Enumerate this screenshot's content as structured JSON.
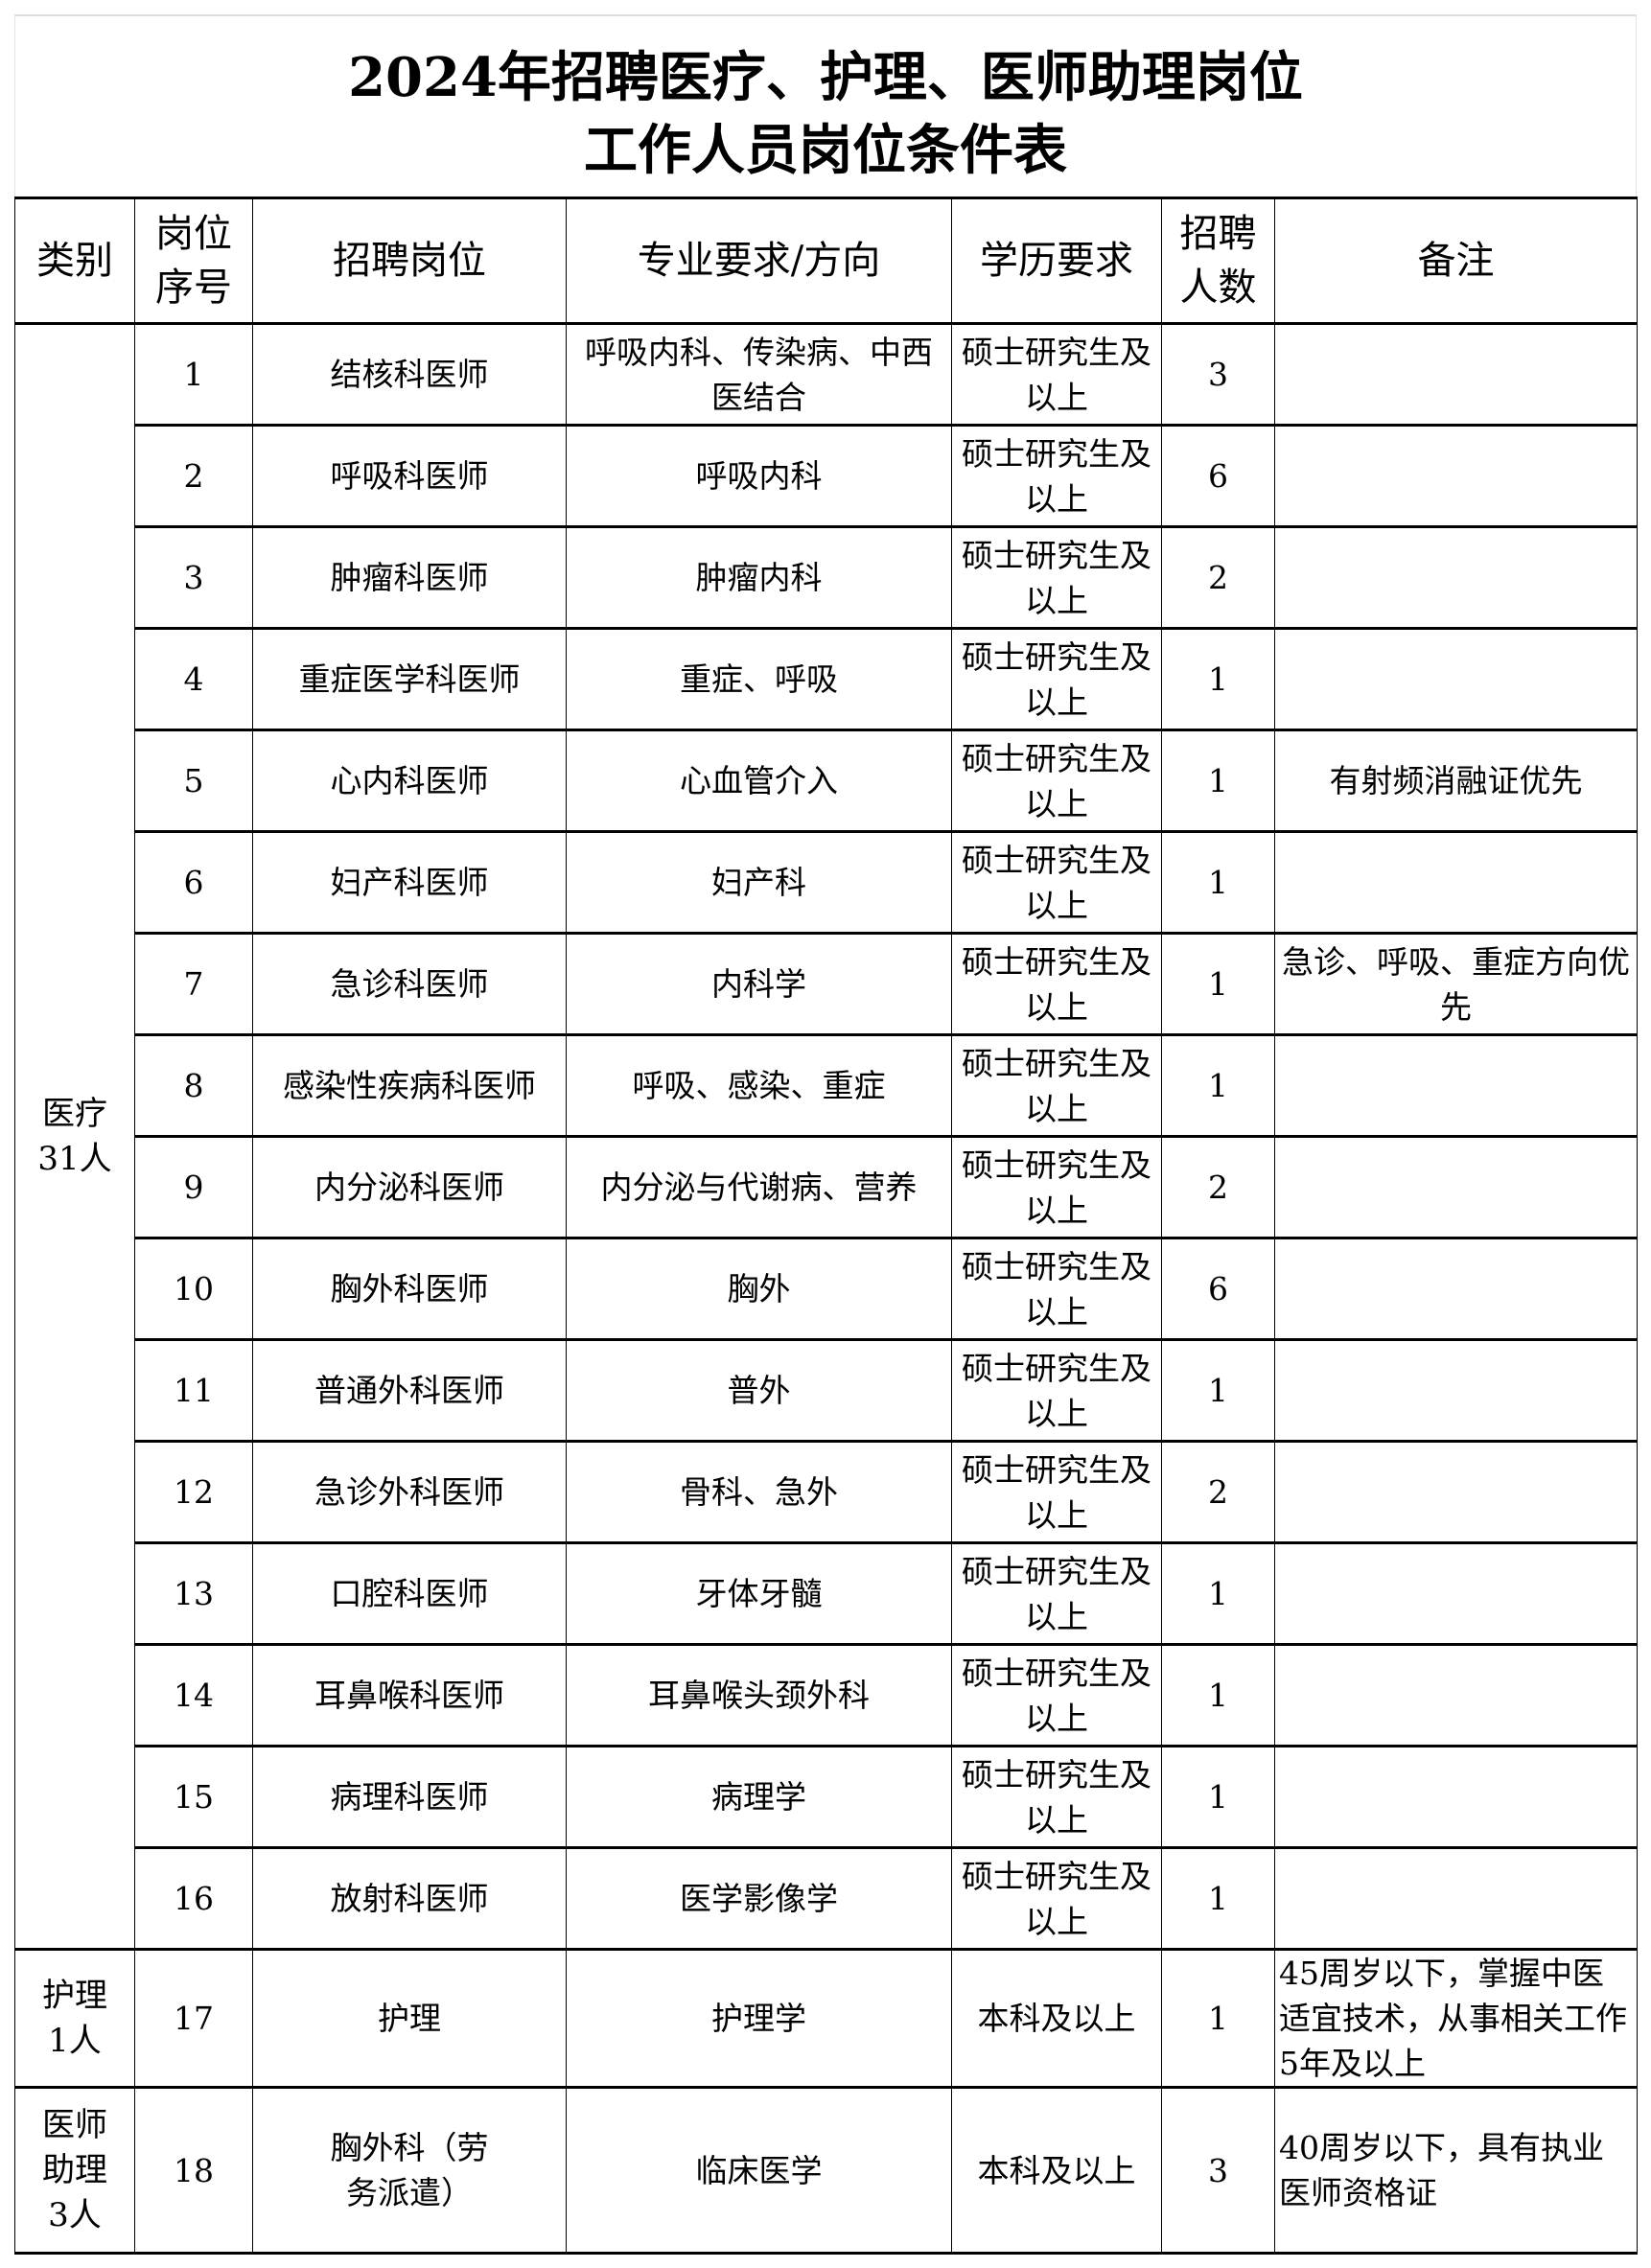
{
  "title": {
    "line1": "2024年招聘医疗、护理、医师助理岗位",
    "line2": "工作人员岗位条件表"
  },
  "headers": [
    "类别",
    "岗位序号",
    "招聘岗位",
    "专业要求/方向",
    "学历要求",
    "招聘人数",
    "备注"
  ],
  "categories": [
    {
      "label": "医疗31人",
      "rows": 16
    },
    {
      "label": "护理1人",
      "rows": 1
    },
    {
      "label": "医师助理3人",
      "rows": 1
    }
  ],
  "rows": [
    {
      "no": "1",
      "post": "结核科医师",
      "major": "呼吸内科、传染病、中西医结合",
      "edu": "硕士研究生及以上",
      "count": "3",
      "note": ""
    },
    {
      "no": "2",
      "post": "呼吸科医师",
      "major": "呼吸内科",
      "edu": "硕士研究生及以上",
      "count": "6",
      "note": ""
    },
    {
      "no": "3",
      "post": "肿瘤科医师",
      "major": "肿瘤内科",
      "edu": "硕士研究生及以上",
      "count": "2",
      "note": ""
    },
    {
      "no": "4",
      "post": "重症医学科医师",
      "major": "重症、呼吸",
      "edu": "硕士研究生及以上",
      "count": "1",
      "note": ""
    },
    {
      "no": "5",
      "post": "心内科医师",
      "major": "心血管介入",
      "edu": "硕士研究生及以上",
      "count": "1",
      "note": "有射频消融证优先"
    },
    {
      "no": "6",
      "post": "妇产科医师",
      "major": "妇产科",
      "edu": "硕士研究生及以上",
      "count": "1",
      "note": ""
    },
    {
      "no": "7",
      "post": "急诊科医师",
      "major": "内科学",
      "edu": "硕士研究生及以上",
      "count": "1",
      "note": "急诊、呼吸、重症方向优先"
    },
    {
      "no": "8",
      "post": "感染性疾病科医师",
      "major": "呼吸、感染、重症",
      "edu": "硕士研究生及以上",
      "count": "1",
      "note": ""
    },
    {
      "no": "9",
      "post": "内分泌科医师",
      "major": "内分泌与代谢病、营养",
      "edu": "硕士研究生及以上",
      "count": "2",
      "note": ""
    },
    {
      "no": "10",
      "post": "胸外科医师",
      "major": "胸外",
      "edu": "硕士研究生及以上",
      "count": "6",
      "note": ""
    },
    {
      "no": "11",
      "post": "普通外科医师",
      "major": "普外",
      "edu": "硕士研究生及以上",
      "count": "1",
      "note": ""
    },
    {
      "no": "12",
      "post": "急诊外科医师",
      "major": "骨科、急外",
      "edu": "硕士研究生及以上",
      "count": "2",
      "note": ""
    },
    {
      "no": "13",
      "post": "口腔科医师",
      "major": "牙体牙髓",
      "edu": "硕士研究生及以上",
      "count": "1",
      "note": ""
    },
    {
      "no": "14",
      "post": "耳鼻喉科医师",
      "major": "耳鼻喉头颈外科",
      "edu": "硕士研究生及以上",
      "count": "1",
      "note": ""
    },
    {
      "no": "15",
      "post": "病理科医师",
      "major": "病理学",
      "edu": "硕士研究生及以上",
      "count": "1",
      "note": ""
    },
    {
      "no": "16",
      "post": "放射科医师",
      "major": "医学影像学",
      "edu": "硕士研究生及以上",
      "count": "1",
      "note": ""
    },
    {
      "no": "17",
      "post": "护理",
      "major": "护理学",
      "edu": "本科及以上",
      "count": "1",
      "note": "45周岁以下，掌握中医适宜技术，从事相关工作5年及以上"
    },
    {
      "no": "18",
      "post": "胸外科（劳务派遣）",
      "major": "临床医学",
      "edu": "本科及以上",
      "count": "3",
      "note": "40周岁以下，具有执业医师资格证"
    }
  ]
}
